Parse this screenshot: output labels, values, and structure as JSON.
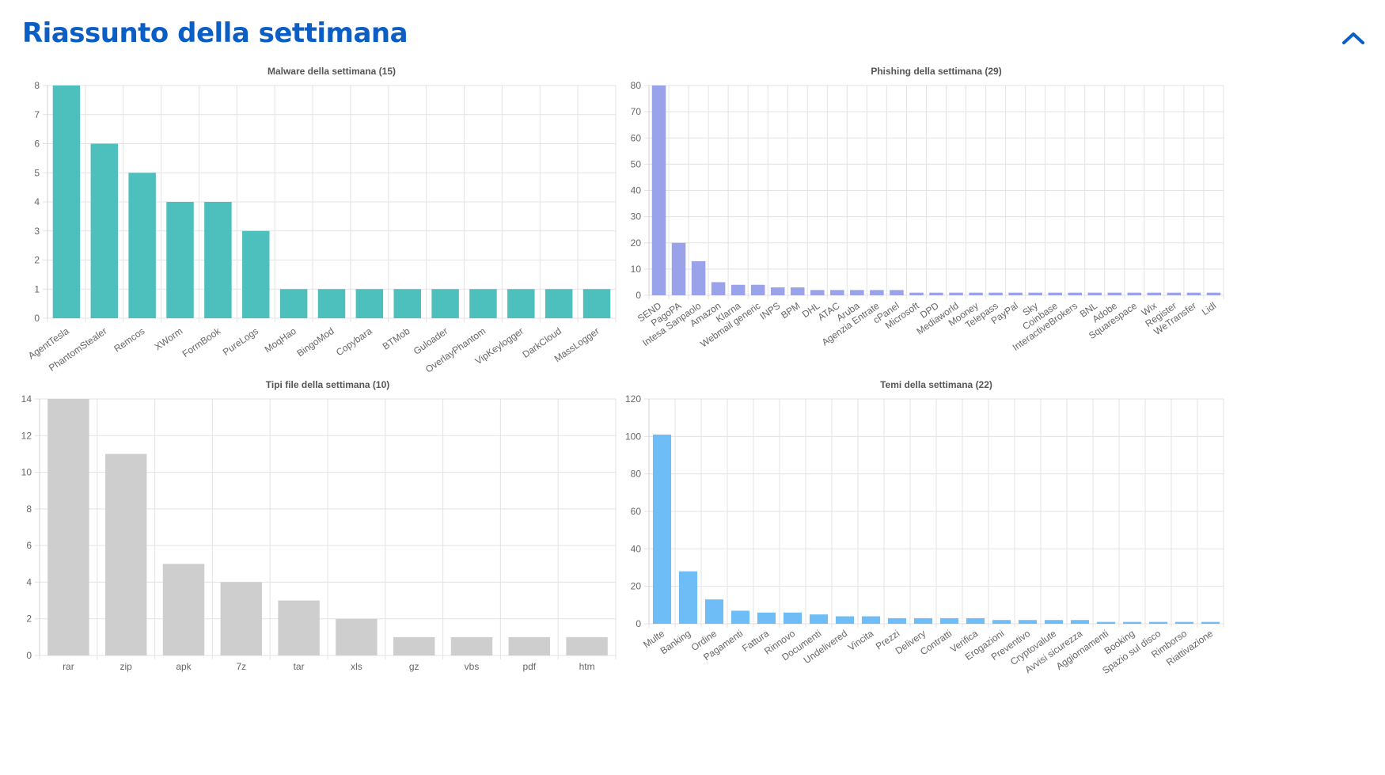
{
  "header": {
    "title": "Riassunto della settimana",
    "collapse_icon": "chevron-up-icon",
    "accent_color": "#0b5fc4"
  },
  "chart_data": [
    {
      "id": "malware",
      "type": "bar",
      "title": "Malware della settimana (15)",
      "color": "#4dc0be",
      "ylim": [
        0,
        8
      ],
      "yticks": [
        0,
        1,
        2,
        3,
        4,
        5,
        6,
        7,
        8
      ],
      "label_rotation": "rotated",
      "grid": true,
      "categories": [
        "AgentTesla",
        "PhantomStealer",
        "Remcos",
        "XWorm",
        "FormBook",
        "PureLogs",
        "MoqHao",
        "BingoMod",
        "Copybara",
        "BTMob",
        "Guloader",
        "OverlayPhantom",
        "VipKeylogger",
        "DarkCloud",
        "MassLogger"
      ],
      "values": [
        8,
        6,
        5,
        4,
        4,
        3,
        1,
        1,
        1,
        1,
        1,
        1,
        1,
        1,
        1
      ]
    },
    {
      "id": "phishing",
      "type": "bar",
      "title": "Phishing della settimana (29)",
      "color": "#9aa2ea",
      "ylim": [
        0,
        80
      ],
      "yticks": [
        0,
        10,
        20,
        30,
        40,
        50,
        60,
        70,
        80
      ],
      "label_rotation": "rotated",
      "grid": true,
      "categories": [
        "SEND",
        "PagoPA",
        "Intesa Sanpaolo",
        "Amazon",
        "Klarna",
        "Webmail generic",
        "INPS",
        "BPM",
        "DHL",
        "ATAC",
        "Aruba",
        "Agenzia Entrate",
        "cPanel",
        "Microsoft",
        "DPD",
        "Mediaworld",
        "Mooney",
        "Telepass",
        "PayPal",
        "Sky",
        "Coinbase",
        "InteractiveBrokers",
        "BNL",
        "Adobe",
        "Squarespace",
        "Wix",
        "Register",
        "WeTransfer",
        "Lidl"
      ],
      "values": [
        80,
        20,
        13,
        5,
        4,
        4,
        3,
        3,
        2,
        2,
        2,
        2,
        2,
        1,
        1,
        1,
        1,
        1,
        1,
        1,
        1,
        1,
        1,
        1,
        1,
        1,
        1,
        1,
        1
      ]
    },
    {
      "id": "tipi-file",
      "type": "bar",
      "title": "Tipi file della settimana (10)",
      "color": "#cececf",
      "ylim": [
        0,
        14
      ],
      "yticks": [
        0,
        2,
        4,
        6,
        8,
        10,
        12,
        14
      ],
      "label_rotation": "none",
      "grid": true,
      "categories": [
        "rar",
        "zip",
        "apk",
        "7z",
        "tar",
        "xls",
        "gz",
        "vbs",
        "pdf",
        "htm"
      ],
      "values": [
        14,
        11,
        5,
        4,
        3,
        2,
        1,
        1,
        1,
        1
      ]
    },
    {
      "id": "temi",
      "type": "bar",
      "title": "Temi della settimana (22)",
      "color": "#6ebdf6",
      "ylim": [
        0,
        120
      ],
      "yticks": [
        0,
        20,
        40,
        60,
        80,
        100,
        120
      ],
      "label_rotation": "rotated",
      "grid": true,
      "categories": [
        "Multe",
        "Banking",
        "Ordine",
        "Pagamenti",
        "Fattura",
        "Rinnovo",
        "Documenti",
        "Undelivered",
        "Vincita",
        "Prezzi",
        "Delivery",
        "Contratti",
        "Verifica",
        "Erogazioni",
        "Preventivo",
        "Cryptovalute",
        "Avvisi sicurezza",
        "Aggiornamenti",
        "Booking",
        "Spazio sul disco",
        "Rimborso",
        "Riattivazione"
      ],
      "values": [
        101,
        28,
        13,
        7,
        6,
        6,
        5,
        4,
        4,
        3,
        3,
        3,
        3,
        2,
        2,
        2,
        2,
        1,
        1,
        1,
        1,
        1
      ]
    }
  ]
}
